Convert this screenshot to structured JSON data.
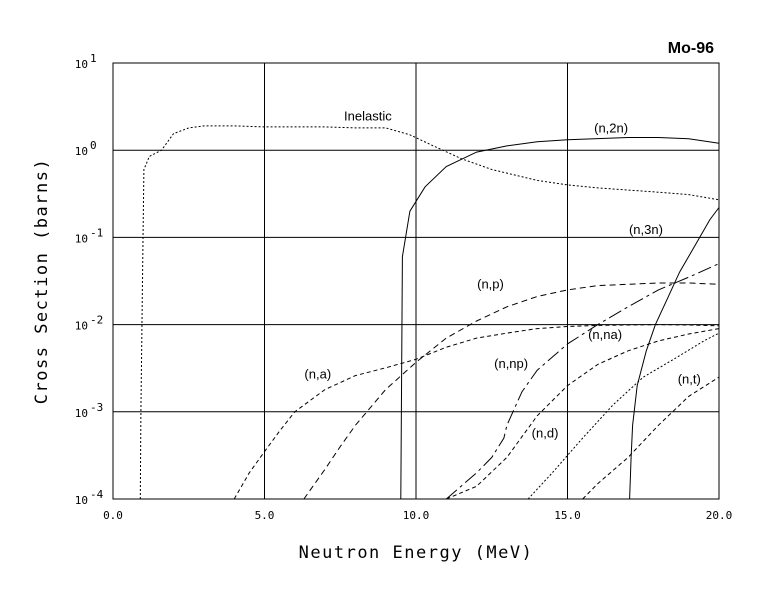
{
  "chart_data": {
    "type": "line",
    "title": "Mo-96",
    "xlabel": "Neutron Energy (MeV)",
    "ylabel": "Cross Section (barns)",
    "xlim": [
      0,
      20
    ],
    "ylim": [
      0.0001,
      10
    ],
    "yscale": "log",
    "grid": true,
    "x_ticks": [
      "0.0",
      "5.0",
      "10.0",
      "15.0",
      "20.0"
    ],
    "y_ticks": [
      {
        "base": "10",
        "exp": "1"
      },
      {
        "base": "10",
        "exp": "0"
      },
      {
        "base": "10",
        "exp": "-1"
      },
      {
        "base": "10",
        "exp": "-2"
      },
      {
        "base": "10",
        "exp": "-3"
      },
      {
        "base": "10",
        "exp": "-4"
      }
    ],
    "series": [
      {
        "name": "Inelastic",
        "dash": "2,2",
        "points": [
          [
            0.9,
            0.0001
          ],
          [
            0.92,
            0.001
          ],
          [
            0.98,
            0.05
          ],
          [
            1.02,
            0.6
          ],
          [
            1.2,
            0.85
          ],
          [
            1.6,
            1.0
          ],
          [
            2.0,
            1.55
          ],
          [
            2.5,
            1.8
          ],
          [
            3.0,
            1.9
          ],
          [
            4.0,
            1.9
          ],
          [
            5.0,
            1.85
          ],
          [
            6.0,
            1.85
          ],
          [
            7.0,
            1.85
          ],
          [
            8.0,
            1.8
          ],
          [
            9.0,
            1.8
          ],
          [
            9.8,
            1.5
          ],
          [
            10.5,
            1.15
          ],
          [
            11.5,
            0.8
          ],
          [
            12.5,
            0.6
          ],
          [
            14.0,
            0.45
          ],
          [
            15.0,
            0.4
          ],
          [
            16.0,
            0.37
          ],
          [
            18.0,
            0.33
          ],
          [
            19.0,
            0.31
          ],
          [
            20.0,
            0.27
          ]
        ]
      },
      {
        "name": "(n,2n)",
        "dash": "",
        "points": [
          [
            9.5,
            0.0001
          ],
          [
            9.55,
            0.06
          ],
          [
            9.8,
            0.2
          ],
          [
            10.3,
            0.38
          ],
          [
            11.0,
            0.65
          ],
          [
            12.0,
            0.95
          ],
          [
            13.0,
            1.12
          ],
          [
            14.0,
            1.25
          ],
          [
            15.0,
            1.32
          ],
          [
            16.0,
            1.36
          ],
          [
            17.0,
            1.4
          ],
          [
            18.0,
            1.4
          ],
          [
            19.0,
            1.35
          ],
          [
            20.0,
            1.2
          ]
        ]
      },
      {
        "name": "(n,3n)",
        "dash": "",
        "points": [
          [
            17.05,
            0.0001
          ],
          [
            17.1,
            0.0003
          ],
          [
            17.15,
            0.0007
          ],
          [
            17.3,
            0.002
          ],
          [
            17.6,
            0.005
          ],
          [
            17.9,
            0.01
          ],
          [
            18.3,
            0.02
          ],
          [
            18.7,
            0.04
          ],
          [
            19.2,
            0.08
          ],
          [
            19.7,
            0.16
          ],
          [
            20.0,
            0.22
          ]
        ]
      },
      {
        "name": "(n,p)",
        "dash": "6,4",
        "points": [
          [
            6.3,
            0.0001
          ],
          [
            7.0,
            0.00022
          ],
          [
            7.5,
            0.0004
          ],
          [
            8.0,
            0.0007
          ],
          [
            9.0,
            0.0018
          ],
          [
            10.0,
            0.0037
          ],
          [
            11.0,
            0.007
          ],
          [
            12.0,
            0.011
          ],
          [
            13.0,
            0.016
          ],
          [
            14.0,
            0.021
          ],
          [
            15.0,
            0.025
          ],
          [
            16.0,
            0.028
          ],
          [
            17.0,
            0.029
          ],
          [
            18.0,
            0.03
          ],
          [
            19.0,
            0.03
          ],
          [
            20.0,
            0.029
          ]
        ]
      },
      {
        "name": "(n,a)",
        "dash": "4,3",
        "points": [
          [
            4.0,
            0.0001
          ],
          [
            4.5,
            0.0002
          ],
          [
            5.0,
            0.00035
          ],
          [
            5.5,
            0.0006
          ],
          [
            6.0,
            0.001
          ],
          [
            7.0,
            0.0018
          ],
          [
            8.0,
            0.0026
          ],
          [
            9.0,
            0.0032
          ],
          [
            10.0,
            0.004
          ],
          [
            11.0,
            0.0055
          ],
          [
            12.0,
            0.007
          ],
          [
            13.0,
            0.008
          ],
          [
            14.0,
            0.009
          ],
          [
            15.0,
            0.0095
          ],
          [
            16.0,
            0.0098
          ],
          [
            17.0,
            0.0099
          ],
          [
            18.0,
            0.01
          ],
          [
            19.0,
            0.0099
          ],
          [
            20.0,
            0.0097
          ]
        ]
      },
      {
        "name": "(n,np)",
        "dash": "14,4,3,4",
        "points": [
          [
            11.0,
            0.0001
          ],
          [
            12.0,
            0.0002
          ],
          [
            12.5,
            0.0003
          ],
          [
            12.9,
            0.0005
          ],
          [
            13.0,
            0.0007
          ],
          [
            13.5,
            0.0017
          ],
          [
            14.0,
            0.003
          ],
          [
            15.0,
            0.006
          ],
          [
            16.0,
            0.01
          ],
          [
            17.0,
            0.016
          ],
          [
            18.0,
            0.025
          ],
          [
            19.0,
            0.035
          ],
          [
            20.0,
            0.05
          ]
        ]
      },
      {
        "name": "(n,na)",
        "dash": "4,3",
        "points": [
          [
            11.0,
            0.0001
          ],
          [
            12.0,
            0.00014
          ],
          [
            13.0,
            0.0003
          ],
          [
            14.0,
            0.0009
          ],
          [
            15.0,
            0.002
          ],
          [
            16.0,
            0.0035
          ],
          [
            17.0,
            0.005
          ],
          [
            18.0,
            0.0065
          ],
          [
            19.0,
            0.0078
          ],
          [
            20.0,
            0.009
          ]
        ]
      },
      {
        "name": "(n,d)",
        "dash": "2,2",
        "points": [
          [
            13.7,
            0.0001
          ],
          [
            14.5,
            0.0002
          ],
          [
            15.5,
            0.0005
          ],
          [
            16.5,
            0.0012
          ],
          [
            17.5,
            0.0025
          ],
          [
            18.5,
            0.004
          ],
          [
            19.5,
            0.0065
          ],
          [
            20.0,
            0.008
          ]
        ]
      },
      {
        "name": "(n,t)",
        "dash": "4,3",
        "points": [
          [
            15.5,
            0.0001
          ],
          [
            16.0,
            0.00015
          ],
          [
            17.0,
            0.0003
          ],
          [
            18.0,
            0.0007
          ],
          [
            19.0,
            0.0015
          ],
          [
            20.0,
            0.0025
          ]
        ]
      }
    ],
    "annotations": [
      {
        "text": "Inelastic",
        "x": 9.2,
        "y": 2.2
      },
      {
        "text": "(n,2n)",
        "x": 17.0,
        "y": 1.6
      },
      {
        "text": "(n,3n)",
        "x": 18.15,
        "y": 0.11
      },
      {
        "text": "(n,p)",
        "x": 12.9,
        "y": 0.026
      },
      {
        "text": "(n,a)",
        "x": 7.2,
        "y": 0.0024
      },
      {
        "text": "(n,np)",
        "x": 13.7,
        "y": 0.0032
      },
      {
        "text": "(n,na)",
        "x": 16.8,
        "y": 0.0068
      },
      {
        "text": "(n,d)",
        "x": 14.7,
        "y": 0.00051
      },
      {
        "text": "(n,t)",
        "x": 19.4,
        "y": 0.0021
      }
    ]
  }
}
